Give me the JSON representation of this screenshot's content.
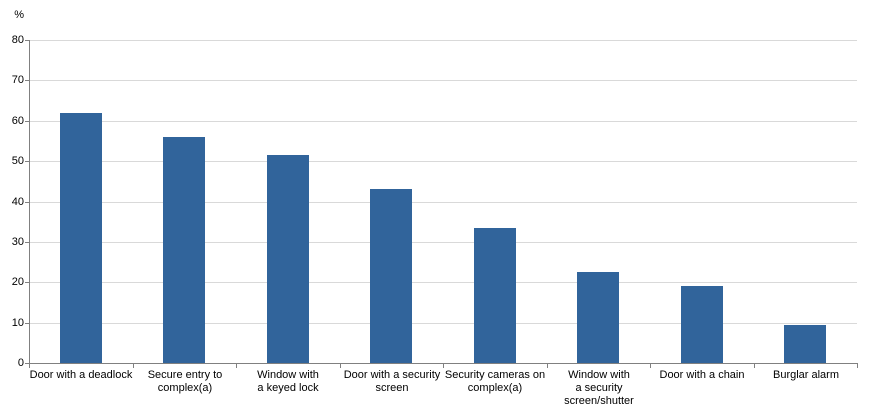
{
  "chart_data": {
    "type": "bar",
    "title": "",
    "xlabel": "",
    "ylabel": "%",
    "ylim": [
      0,
      80
    ],
    "yticks": [
      0,
      10,
      20,
      30,
      40,
      50,
      60,
      70,
      80
    ],
    "grid": true,
    "legend": false,
    "categories": [
      "Door with a deadlock",
      "Secure entry to complex(a)",
      "Window with a keyed lock",
      "Door with a security screen",
      "Security cameras on complex(a)",
      "Window with a security screen/shutter",
      "Door with a chain",
      "Burglar alarm"
    ],
    "category_label_lines": [
      [
        "Door with a deadlock"
      ],
      [
        "Secure entry to",
        "complex(a)"
      ],
      [
        "Window with",
        "a keyed lock"
      ],
      [
        "Door with a security",
        "screen"
      ],
      [
        "Security cameras on",
        "complex(a)"
      ],
      [
        "Window with",
        "a security",
        "screen/shutter"
      ],
      [
        "Door with a chain"
      ],
      [
        "Burglar alarm"
      ]
    ],
    "values": [
      62,
      56,
      51.5,
      43,
      33.5,
      22.5,
      19,
      9.5
    ],
    "colors": {
      "bar": "#31649B",
      "gridline": "#D9D9D9",
      "axis": "#808080",
      "text": "#000000",
      "background": "#FFFFFF"
    }
  }
}
